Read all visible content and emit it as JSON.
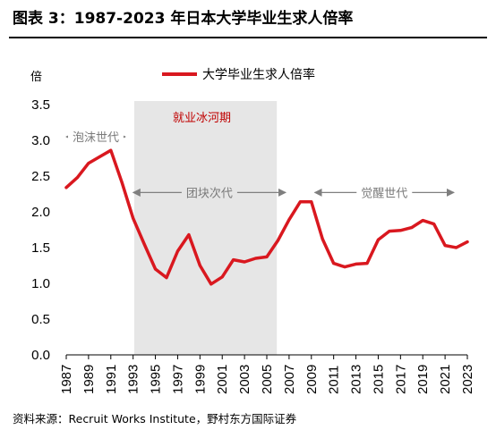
{
  "figure_title": "图表 3：1987-2023 年日本大学毕业生求人倍率",
  "source_note": "资料来源：Recruit Works Institute，野村东方国际证券",
  "colors": {
    "line": "#d9181f",
    "shade": "#e6e6e6",
    "arrow": "#7f7f7f",
    "ice_text": "#c00000"
  },
  "chart_data": {
    "type": "line",
    "title": "",
    "ylabel": "倍",
    "xlabel": "",
    "ylim": [
      0,
      3.5
    ],
    "yticks": [
      "0.0",
      "0.5",
      "1.0",
      "1.5",
      "2.0",
      "2.5",
      "3.0",
      "3.5"
    ],
    "xticks": [
      "1987",
      "1989",
      "1991",
      "1993",
      "1995",
      "1997",
      "1999",
      "2001",
      "2003",
      "2005",
      "2007",
      "2009",
      "2011",
      "2013",
      "2015",
      "2017",
      "2019",
      "2021",
      "2023"
    ],
    "legend": {
      "position": "top-center"
    },
    "grid": false,
    "series": [
      {
        "name": "大学毕业生求人倍率",
        "x": [
          1987,
          1988,
          1989,
          1990,
          1991,
          1992,
          1993,
          1994,
          1995,
          1996,
          1997,
          1998,
          1999,
          2000,
          2001,
          2002,
          2003,
          2004,
          2005,
          2006,
          2007,
          2008,
          2009,
          2010,
          2011,
          2012,
          2013,
          2014,
          2015,
          2016,
          2017,
          2018,
          2019,
          2020,
          2021,
          2022,
          2023
        ],
        "values": [
          2.34,
          2.48,
          2.68,
          2.77,
          2.86,
          2.41,
          1.91,
          1.55,
          1.2,
          1.08,
          1.45,
          1.68,
          1.25,
          0.99,
          1.09,
          1.33,
          1.3,
          1.35,
          1.37,
          1.6,
          1.89,
          2.14,
          2.14,
          1.62,
          1.28,
          1.23,
          1.27,
          1.28,
          1.61,
          1.73,
          1.74,
          1.78,
          1.88,
          1.83,
          1.53,
          1.5,
          1.58
        ]
      }
    ],
    "shaded_region": {
      "label": "就业冰河期",
      "x_start": 1993.1,
      "x_end": 2005.9
    },
    "annotations": [
      {
        "label": "泡沫世代",
        "x_start": 1987,
        "x_end": 1992.3,
        "y": 3.05
      },
      {
        "label": "团块次代",
        "x_start": 1993,
        "x_end": 2006.7,
        "y": 2.27
      },
      {
        "label": "觉醒世代",
        "x_start": 2009.3,
        "x_end": 2021.8,
        "y": 2.27
      }
    ]
  }
}
